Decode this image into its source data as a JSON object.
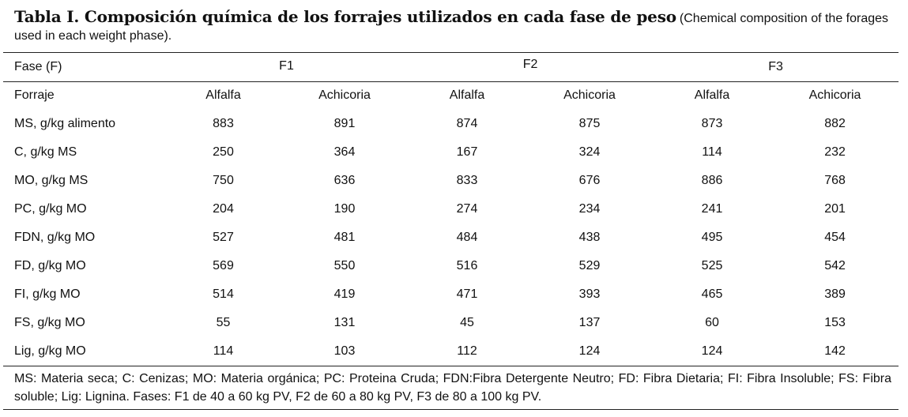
{
  "caption": {
    "main": "Tabla I. Composición química de los forrajes utilizados en cada fase de peso",
    "sub": "(Chemical composition of the forages used in each weight phase)."
  },
  "header": {
    "fase_label": "Fase (F)",
    "phases": [
      "F1",
      "F2",
      "F3"
    ],
    "forraje_label": "Forraje",
    "forages": [
      "Alfalfa",
      "Achicoria",
      "Alfalfa",
      "Achicoria",
      "Alfalfa",
      "Achicoria"
    ]
  },
  "rows": [
    {
      "label": "MS, g/kg alimento",
      "values": [
        "883",
        "891",
        "874",
        "875",
        "873",
        "882"
      ]
    },
    {
      "label": "C, g/kg MS",
      "values": [
        "250",
        "364",
        "167",
        "324",
        "114",
        "232"
      ]
    },
    {
      "label": "MO, g/kg MS",
      "values": [
        "750",
        "636",
        "833",
        "676",
        "886",
        "768"
      ]
    },
    {
      "label": "PC, g/kg MO",
      "values": [
        "204",
        "190",
        "274",
        "234",
        "241",
        "201"
      ]
    },
    {
      "label": "FDN, g/kg MO",
      "values": [
        "527",
        "481",
        "484",
        "438",
        "495",
        "454"
      ]
    },
    {
      "label": "FD, g/kg MO",
      "values": [
        "569",
        "550",
        "516",
        "529",
        "525",
        "542"
      ]
    },
    {
      "label": "FI, g/kg MO",
      "values": [
        "514",
        "419",
        "471",
        "393",
        "465",
        "389"
      ]
    },
    {
      "label": "FS, g/kg MO",
      "values": [
        "55",
        "131",
        "45",
        "137",
        "60",
        "153"
      ]
    },
    {
      "label": "Lig, g/kg MO",
      "values": [
        "114",
        "103",
        "112",
        "124",
        "124",
        "142"
      ]
    }
  ],
  "footnote": "MS: Materia seca; C: Cenizas; MO: Materia orgánica; PC: Proteina Cruda; FDN:Fibra Detergente Neutro; FD: Fibra Dietaria; FI: Fibra Insoluble; FS: Fibra soluble; Lig: Lignina. Fases: F1 de 40 a 60 kg PV, F2 de 60 a 80 kg PV, F3 de 80 a 100 kg PV."
}
